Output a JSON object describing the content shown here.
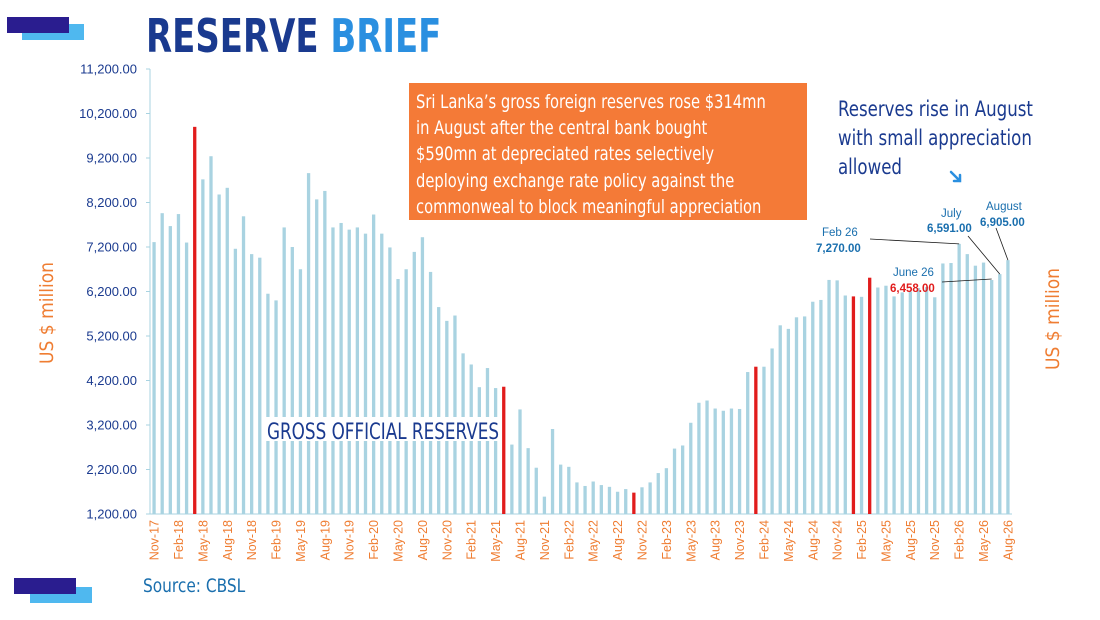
{
  "header": {
    "title_part1": "RESERVE",
    "title_part2": "BRIEF"
  },
  "colors": {
    "bar": "#a9d3e1",
    "highlight_bar": "#e11c1c",
    "navy": "#1a3a8f",
    "orange": "#ef7d32",
    "light_blue": "#4fb8ef"
  },
  "callout": {
    "lines": [
      "Sri Lanka’s gross foreign reserves rose $314mn",
      "in August after the central bank bought",
      "$590mn at depreciated rates selectively",
      "deploying exchange rate policy against the",
      "commonweal to block meaningful appreciation"
    ]
  },
  "note": "Reserves rise in August\nwith small appreciation\nallowed",
  "source": "Source: CBSL",
  "chart_data": {
    "type": "bar",
    "ylabel_left": "US $ million",
    "ylabel_right": "US $ million",
    "overlay_label": "GROSS OFFICIAL RESERVES",
    "ylim": [
      1200,
      11200
    ],
    "yticks": [
      "1,200.00",
      "2,200.00",
      "3,200.00",
      "4,200.00",
      "5,200.00",
      "6,200.00",
      "7,200.00",
      "8,200.00",
      "9,200.00",
      "10,200.00",
      "11,200.00"
    ],
    "xticks": [
      "Nov-17",
      "Feb-18",
      "May-18",
      "Aug-18",
      "Nov-18",
      "Feb-19",
      "May-19",
      "Aug-19",
      "Nov-19",
      "Feb-20",
      "May-20",
      "Aug-20",
      "Nov-20",
      "Feb-21",
      "May-21",
      "Aug-21",
      "Nov-21",
      "Feb-22",
      "May-22",
      "Aug-22",
      "Nov-22",
      "Feb-23",
      "May-23",
      "Aug-23",
      "Nov-23",
      "Feb-24",
      "May-24",
      "Aug-24",
      "Nov-24",
      "Feb-25",
      "May-25",
      "Aug-25",
      "Nov-25",
      "Feb-26",
      "May-26",
      "Aug-26"
    ],
    "start_month": "Nov-17",
    "values": [
      7310,
      7960,
      7670,
      7940,
      7300,
      9900,
      8720,
      9240,
      8380,
      8530,
      7160,
      7890,
      7040,
      6960,
      6150,
      6000,
      7640,
      7200,
      6700,
      8860,
      8270,
      8460,
      7640,
      7740,
      7590,
      7640,
      7500,
      7930,
      7500,
      7190,
      6480,
      6700,
      7090,
      7420,
      6640,
      5850,
      5540,
      5660,
      4810,
      4560,
      4050,
      4480,
      4030,
      4060,
      2760,
      3550,
      2680,
      2240,
      1590,
      3110,
      2310,
      2260,
      1910,
      1830,
      1930,
      1850,
      1810,
      1700,
      1760,
      1680,
      1800,
      1910,
      2120,
      2230,
      2670,
      2740,
      3250,
      3700,
      3750,
      3570,
      3520,
      3570,
      3560,
      4390,
      4510,
      4510,
      4920,
      5440,
      5360,
      5620,
      5640,
      5970,
      6010,
      6460,
      6450,
      6110,
      6090,
      6080,
      6510,
      6290,
      6330,
      6090,
      6180,
      6200,
      6280,
      6300,
      6070,
      6830,
      6840,
      7270,
      7040,
      6780,
      6850,
      6458,
      6591,
      6905
    ],
    "highlight_months": [
      "Apr-18",
      "Jun-21",
      "Oct-22",
      "Jan-24",
      "Jan-25",
      "Mar-25"
    ],
    "annotations": [
      {
        "name": "Feb 26",
        "value": "7,270.00"
      },
      {
        "name": "June 26",
        "value": "6,458.00"
      },
      {
        "name": "July",
        "value": "6,591.00"
      },
      {
        "name": "August",
        "value": "6,905.00"
      }
    ]
  }
}
